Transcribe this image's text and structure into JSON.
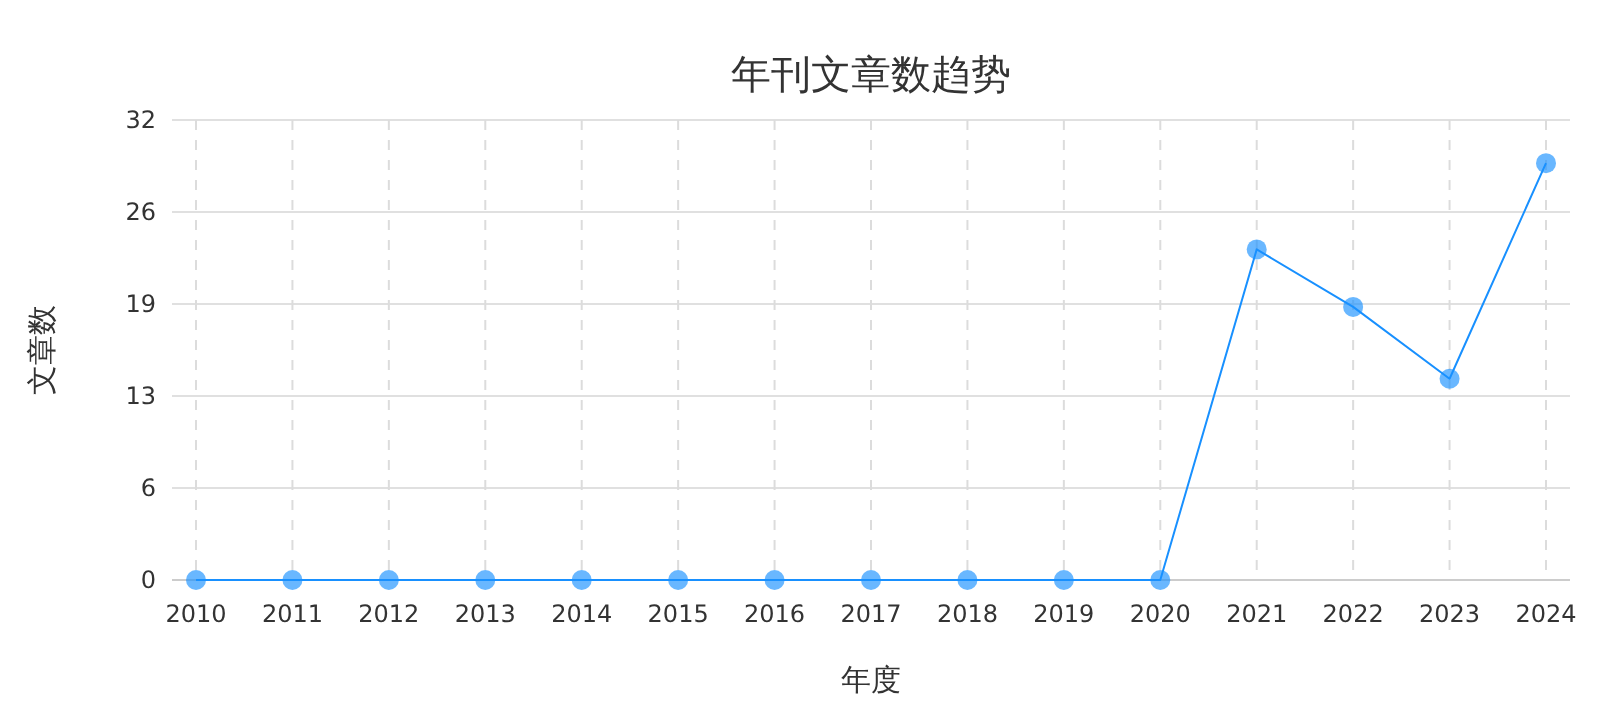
{
  "chart_data": {
    "type": "line",
    "title": "年刊文章数趋势",
    "xlabel": "年度",
    "ylabel": "文章数",
    "categories": [
      "2010",
      "2011",
      "2012",
      "2013",
      "2014",
      "2015",
      "2016",
      "2017",
      "2018",
      "2019",
      "2020",
      "2021",
      "2022",
      "2023",
      "2024"
    ],
    "series": [
      {
        "color": "#1890ff",
        "values": [
          0,
          0,
          0,
          0,
          0,
          0,
          0,
          0,
          0,
          0,
          0,
          23,
          19,
          14,
          29
        ]
      }
    ],
    "ylim": [
      0,
      32
    ],
    "yticks": [
      0,
      {
        "value": 6.4,
        "label": "6"
      },
      {
        "value": 12.8,
        "label": "13"
      },
      {
        "value": 19.2,
        "label": "19"
      },
      {
        "value": 25.6,
        "label": "26"
      },
      32
    ],
    "grid": true,
    "marker": "circle",
    "line_style": "solid"
  }
}
